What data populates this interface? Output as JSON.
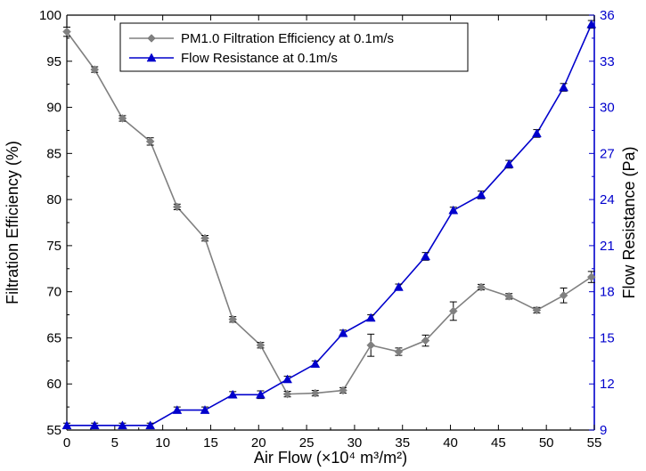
{
  "chart_data": {
    "type": "line",
    "x": [
      0,
      2.9,
      5.8,
      8.7,
      11.5,
      14.4,
      17.3,
      20.2,
      23.0,
      25.9,
      28.8,
      31.7,
      34.6,
      37.4,
      40.3,
      43.2,
      46.1,
      49.0,
      51.8,
      54.7
    ],
    "series": [
      {
        "name": "PM1.0 Filtration Efficiency at 0.1m/s",
        "axis": "left",
        "color": "#808080",
        "marker": "diamond",
        "values": [
          98.2,
          94.1,
          88.8,
          86.3,
          79.2,
          75.8,
          67.0,
          64.2,
          58.9,
          59.0,
          59.3,
          64.2,
          63.5,
          64.7,
          67.9,
          70.5,
          69.5,
          68.0,
          69.6,
          71.6
        ],
        "errors": [
          0.5,
          0.3,
          0.3,
          0.4,
          0.3,
          0.3,
          0.3,
          0.3,
          0.3,
          0.3,
          0.3,
          1.2,
          0.4,
          0.6,
          1.0,
          0.3,
          0.3,
          0.3,
          0.8,
          0.6
        ]
      },
      {
        "name": "Flow Resistance at 0.1m/s",
        "axis": "right",
        "color": "#0000cc",
        "marker": "triangle",
        "values": [
          9.3,
          9.3,
          9.3,
          9.3,
          10.3,
          10.3,
          11.3,
          11.3,
          12.3,
          13.3,
          15.3,
          16.3,
          18.3,
          20.3,
          23.3,
          24.3,
          26.3,
          28.3,
          31.3,
          35.4
        ],
        "errors": [
          0.15,
          0.15,
          0.15,
          0.15,
          0.2,
          0.2,
          0.2,
          0.25,
          0.2,
          0.2,
          0.2,
          0.2,
          0.2,
          0.25,
          0.2,
          0.25,
          0.25,
          0.25,
          0.25,
          0.25
        ]
      }
    ],
    "xlabel": "Air Flow (×10⁴ m³/m²)",
    "ylabel": "Filtration Efficiency (%)",
    "y2label": "Flow Resistance (Pa)",
    "xlim": [
      0,
      55
    ],
    "ylim": [
      55,
      100
    ],
    "y2lim": [
      9,
      36
    ],
    "xticks": [
      0,
      5,
      10,
      15,
      20,
      25,
      30,
      35,
      40,
      45,
      50,
      55
    ],
    "xtick_labels": [
      "0",
      "5",
      "10",
      "15",
      "20",
      "25",
      "30",
      "35",
      "40",
      "45",
      "50",
      "55"
    ],
    "yticks": [
      55,
      60,
      65,
      70,
      75,
      80,
      85,
      90,
      95,
      100
    ],
    "ytick_labels": [
      "55",
      "60",
      "65",
      "70",
      "75",
      "80",
      "85",
      "90",
      "95",
      "100"
    ],
    "y2ticks": [
      9,
      12,
      15,
      18,
      21,
      24,
      27,
      30,
      33,
      36
    ],
    "y2tick_labels": [
      "9",
      "12",
      "15",
      "18",
      "21",
      "24",
      "27",
      "30",
      "33",
      "36"
    ],
    "y2_color": "#0000cc",
    "grid": false,
    "legend_position": "top-left"
  }
}
